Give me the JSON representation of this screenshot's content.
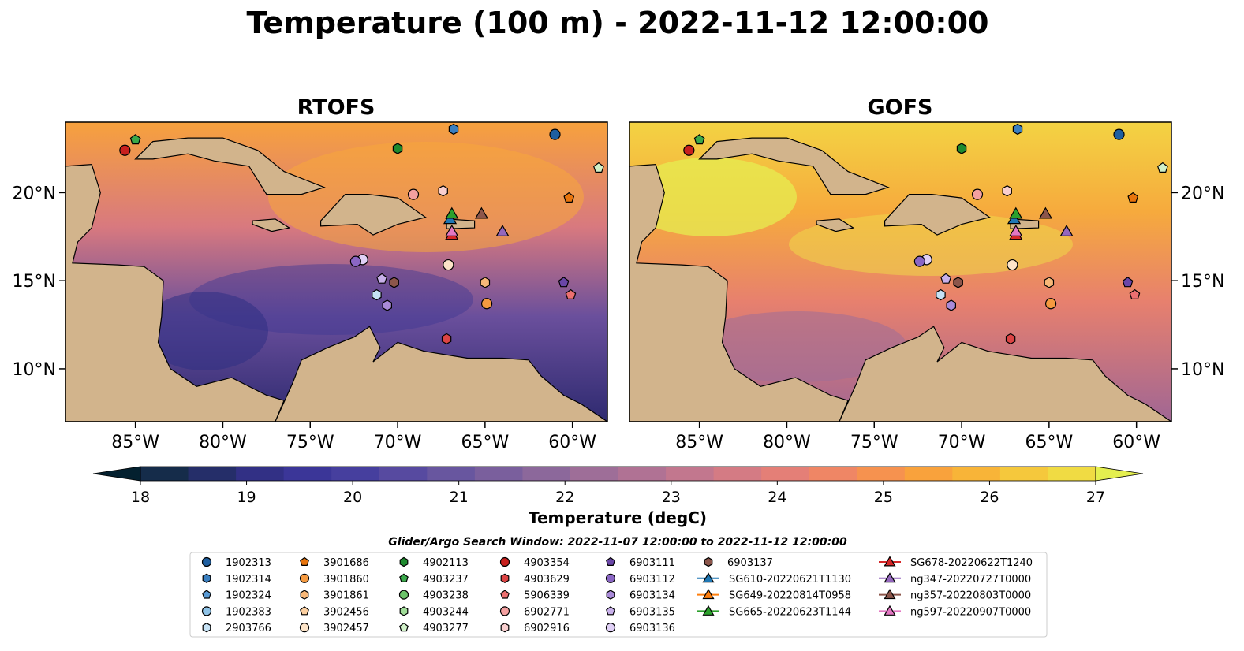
{
  "title": "Temperature (100 m) - 2022-11-12 12:00:00",
  "panels": [
    {
      "title": "RTOFS",
      "model": "rtofs"
    },
    {
      "title": "GOFS",
      "model": "gofs"
    }
  ],
  "lat_ticks": [
    "10°N",
    "15°N",
    "20°N"
  ],
  "lon_ticks": [
    "85°W",
    "80°W",
    "75°W",
    "70°W",
    "65°W",
    "60°W"
  ],
  "colorbar": {
    "label": "Temperature (degC)",
    "ticks": [
      "18",
      "19",
      "20",
      "21",
      "22",
      "23",
      "24",
      "25",
      "26",
      "27"
    ],
    "min": 18,
    "max": 27,
    "extend": "both",
    "colors": [
      "#03202f",
      "#152c4a",
      "#252e69",
      "#323085",
      "#3b3698",
      "#463f9e",
      "#574aa0",
      "#68569f",
      "#7a5f9d",
      "#8c689b",
      "#9e6e98",
      "#b07294",
      "#c2778e",
      "#d47b84",
      "#e47f77",
      "#ef8665",
      "#f6924f",
      "#f9a23c",
      "#f8b438",
      "#f5c83c",
      "#f0db43",
      "#e4ef4f"
    ]
  },
  "search_window": "Glider/Argo Search Window: 2022-11-07 12:00:00 to 2022-11-12 12:00:00",
  "map_colors": {
    "land": "#d2b48c",
    "shelf": "#95b5de",
    "coast": "#000000"
  },
  "legend": {
    "columns": [
      [
        {
          "label": "1902313",
          "marker": "circle",
          "color": "#1f5fa0"
        },
        {
          "label": "1902314",
          "marker": "hexagon",
          "color": "#3a7fc0"
        },
        {
          "label": "1902324",
          "marker": "pentagon",
          "color": "#5a9bd5"
        },
        {
          "label": "1902383",
          "marker": "circle",
          "color": "#8ec2e6"
        },
        {
          "label": "2903766",
          "marker": "hexagon",
          "color": "#c6e2f5"
        }
      ],
      [
        {
          "label": "3901686",
          "marker": "pentagon",
          "color": "#e8740c"
        },
        {
          "label": "3901860",
          "marker": "circle",
          "color": "#f59a40"
        },
        {
          "label": "3901861",
          "marker": "hexagon",
          "color": "#f8b878"
        },
        {
          "label": "3902456",
          "marker": "pentagon",
          "color": "#fbcfa0"
        },
        {
          "label": "3902457",
          "marker": "circle",
          "color": "#fde4c8"
        }
      ],
      [
        {
          "label": "4902113",
          "marker": "hexagon",
          "color": "#1e8a2e"
        },
        {
          "label": "4903237",
          "marker": "pentagon",
          "color": "#3aa84a"
        },
        {
          "label": "4903238",
          "marker": "circle",
          "color": "#6cc46a"
        },
        {
          "label": "4903244",
          "marker": "hexagon",
          "color": "#a0dc98"
        },
        {
          "label": "4903277",
          "marker": "pentagon",
          "color": "#d0f0c8"
        }
      ],
      [
        {
          "label": "4903354",
          "marker": "circle",
          "color": "#c8201e"
        },
        {
          "label": "4903629",
          "marker": "hexagon",
          "color": "#dc4444"
        },
        {
          "label": "5906339",
          "marker": "pentagon",
          "color": "#ec7070"
        },
        {
          "label": "6902771",
          "marker": "circle",
          "color": "#f4a0a0"
        },
        {
          "label": "6902916",
          "marker": "hexagon",
          "color": "#f9cfcf"
        }
      ],
      [
        {
          "label": "6903111",
          "marker": "pentagon",
          "color": "#6a46a8"
        },
        {
          "label": "6903112",
          "marker": "circle",
          "color": "#8a66c4"
        },
        {
          "label": "6903134",
          "marker": "hexagon",
          "color": "#a98ad8"
        },
        {
          "label": "6903135",
          "marker": "pentagon",
          "color": "#c8b0ea"
        },
        {
          "label": "6903136",
          "marker": "circle",
          "color": "#e0d0f6"
        }
      ],
      [
        {
          "label": "6903137",
          "marker": "hexagon",
          "color": "#8c564b"
        },
        {
          "label": "SG610-20220621T1130",
          "marker": "triangle",
          "color": "#1f77b4",
          "line": true
        },
        {
          "label": "SG649-20220814T0958",
          "marker": "triangle",
          "color": "#ff7f0e",
          "line": true
        },
        {
          "label": "SG665-20220623T1144",
          "marker": "triangle",
          "color": "#2ca02c",
          "line": true
        }
      ],
      [
        {
          "label": "SG678-20220622T1240",
          "marker": "triangle",
          "color": "#d62728",
          "line": true
        },
        {
          "label": "ng347-20220727T0000",
          "marker": "triangle",
          "color": "#9467bd",
          "line": true
        },
        {
          "label": "ng357-20220803T0000",
          "marker": "triangle",
          "color": "#8c564b",
          "line": true
        },
        {
          "label": "ng597-20220907T0000",
          "marker": "triangle",
          "color": "#e377c2",
          "line": true
        }
      ]
    ]
  },
  "platforms": [
    {
      "id": "1902313",
      "lon": -61.0,
      "lat": 23.3
    },
    {
      "id": "1902314",
      "lon": -66.8,
      "lat": 23.6
    },
    {
      "id": "3901686",
      "lon": -60.2,
      "lat": 19.7
    },
    {
      "id": "3901860",
      "lon": -64.9,
      "lat": 13.7
    },
    {
      "id": "3901861",
      "lon": -65.0,
      "lat": 14.9
    },
    {
      "id": "3902457",
      "lon": -67.1,
      "lat": 15.9
    },
    {
      "id": "4902113",
      "lon": -70.0,
      "lat": 22.5
    },
    {
      "id": "4903237",
      "lon": -85.0,
      "lat": 23.0
    },
    {
      "id": "4903277",
      "lon": -58.5,
      "lat": 21.4
    },
    {
      "id": "4903354",
      "lon": -85.6,
      "lat": 22.4
    },
    {
      "id": "4903629",
      "lon": -67.2,
      "lat": 11.7
    },
    {
      "id": "5906339",
      "lon": -60.1,
      "lat": 14.2
    },
    {
      "id": "6902771",
      "lon": -69.1,
      "lat": 19.9
    },
    {
      "id": "6902916",
      "lon": -67.4,
      "lat": 20.1
    },
    {
      "id": "6903111",
      "lon": -60.5,
      "lat": 14.9
    },
    {
      "id": "6903134",
      "lon": -70.6,
      "lat": 13.6
    },
    {
      "id": "6903135",
      "lon": -70.9,
      "lat": 15.1
    },
    {
      "id": "6903136",
      "lon": -72.0,
      "lat": 16.2
    },
    {
      "id": "6903137",
      "lon": -70.2,
      "lat": 14.9
    },
    {
      "id": "6903112",
      "lon": -72.4,
      "lat": 16.1
    },
    {
      "id": "2903766",
      "lon": -71.2,
      "lat": 14.2
    },
    {
      "id": "SG610-20220621T1130",
      "lon": -67.0,
      "lat": 18.5
    },
    {
      "id": "SG665-20220623T1144",
      "lon": -66.9,
      "lat": 18.8
    },
    {
      "id": "SG678-20220622T1240",
      "lon": -66.9,
      "lat": 17.6
    },
    {
      "id": "ng347-20220727T0000",
      "lon": -64.0,
      "lat": 17.8
    },
    {
      "id": "ng357-20220803T0000",
      "lon": -65.2,
      "lat": 18.8
    },
    {
      "id": "ng597-20220907T0000",
      "lon": -66.9,
      "lat": 17.8
    }
  ],
  "extent": {
    "lon_min": -89,
    "lon_max": -58,
    "lat_min": 7,
    "lat_max": 24
  }
}
